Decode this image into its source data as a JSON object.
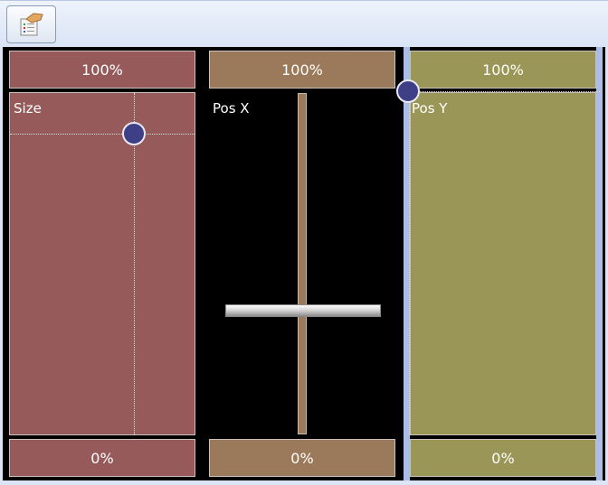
{
  "toolbar": {
    "button_icon": "properties-hand-icon"
  },
  "colors": {
    "size": "#975a5a",
    "pos_x": "#9b7a5c",
    "pos_y": "#999658",
    "knob": "#3e3f86",
    "selection": "#a9bde6"
  },
  "panels": [
    {
      "label": "Size",
      "top": "100%",
      "bottom": "0%",
      "type": "xy-pad",
      "knob_x_fraction": 0.67,
      "knob_y_fraction": 0.88
    },
    {
      "label": "Pos X",
      "top": "100%",
      "bottom": "0%",
      "type": "vertical-slider",
      "value_fraction": 0.36
    },
    {
      "label": "Pos Y",
      "top": "100%",
      "bottom": "0%",
      "type": "xy-pad",
      "selected": true,
      "knob_x_fraction": 0.0,
      "knob_y_fraction": 1.0
    }
  ]
}
